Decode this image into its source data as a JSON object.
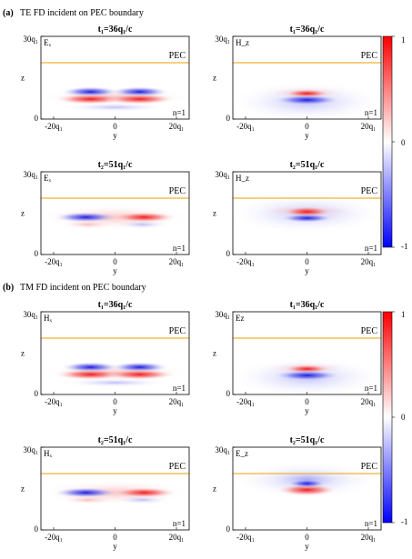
{
  "section_a": {
    "label": "(a)",
    "title": "TE FD incident on PEC boundary"
  },
  "section_b": {
    "label": "(b)",
    "title": "TM FD incident on PEC boundary"
  },
  "panels": [
    {
      "time_title": "t₁=36q₁/c",
      "field": "Eₓ",
      "mode": "a"
    },
    {
      "time_title": "t₁=36q₁/c",
      "field": "H_z",
      "mode": "b"
    },
    {
      "time_title": "t₂=51q₁/c",
      "field": "Eₓ",
      "mode": "c"
    },
    {
      "time_title": "t₂=51q₁/c",
      "field": "H_z",
      "mode": "d"
    },
    {
      "time_title": "t₁=36q₁/c",
      "field": "Hₓ",
      "mode": "a"
    },
    {
      "time_title": "t₁=36q₁/c",
      "field": "Ez",
      "mode": "b"
    },
    {
      "time_title": "t₂=51q₁/c",
      "field": "Hₓ",
      "mode": "c"
    },
    {
      "time_title": "t₂=51q₁/c",
      "field": "E_z",
      "mode": "e"
    }
  ],
  "axes": {
    "xlabel": "y",
    "ylabel": "z",
    "xticks": [
      "-20q₁",
      "0",
      "20q₁"
    ],
    "yticks": [
      "0",
      "30q₁"
    ],
    "boundary_label": "PEC",
    "n_label": "n=1",
    "boundary_color": "#f0b232"
  },
  "colorbar": {
    "ticks": [
      "1",
      "0",
      "-1"
    ],
    "max_color": "#ff0000",
    "mid_color": "#ffffff",
    "min_color": "#0000ff"
  }
}
